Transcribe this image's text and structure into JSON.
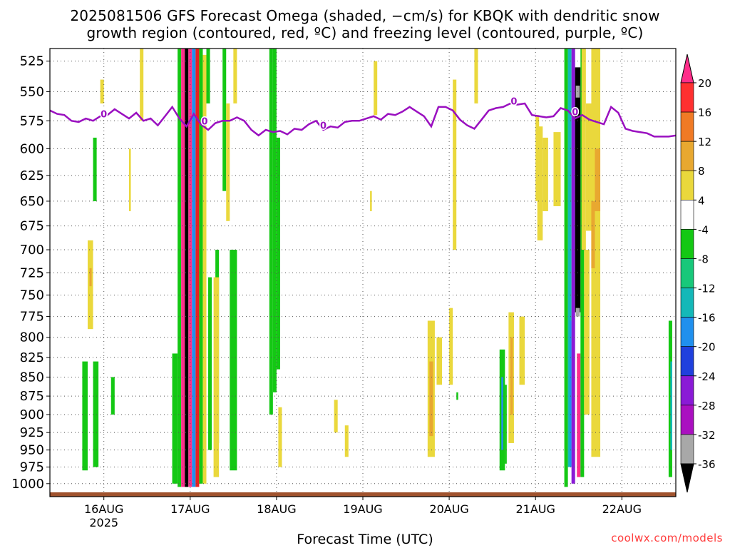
{
  "title_line1": "2025081506 GFS Forecast Omega (shaded, −cm/s) for KBQK with dendritic snow",
  "title_line2": "growth region (contoured, red, ºC) and freezing level (contoured, purple, ºC)",
  "xlabel": "Forecast Time (UTC)",
  "credit": "coolwx.com/models",
  "chart_data": {
    "type": "heatmap",
    "title": "2025081506 GFS Forecast Omega (shaded, −cm/s) for KBQK with dendritic snow growth region (contoured, red, ºC) and freezing level (contoured, purple, ºC)",
    "xlabel": "Forecast Time (UTC)",
    "ylabel": "",
    "x_ticks": [
      "16AUG",
      "17AUG",
      "18AUG",
      "19AUG",
      "20AUG",
      "21AUG",
      "22AUG"
    ],
    "x_tick_sub": {
      "16AUG": "2025"
    },
    "x_range_hours": [
      -15,
      159
    ],
    "y_ticks": [
      525,
      550,
      575,
      600,
      625,
      650,
      675,
      700,
      725,
      750,
      775,
      800,
      825,
      850,
      875,
      900,
      925,
      950,
      975,
      1000
    ],
    "y_range": [
      515,
      1020
    ],
    "y_scale": "log",
    "grid": true,
    "colorbar": {
      "labels": [
        20,
        16,
        12,
        8,
        4,
        -4,
        -8,
        -12,
        -16,
        -20,
        -24,
        -28,
        -32,
        -36
      ],
      "colors": [
        "#ff2d8a",
        "#ff3030",
        "#f07a25",
        "#e8a830",
        "#ead83c",
        "#ffffff",
        "#14c814",
        "#18c87a",
        "#14b8b8",
        "#2090ee",
        "#2040dd",
        "#8a1ad6",
        "#aa10c0",
        "#a8a8a8",
        "#000000"
      ]
    },
    "series": [
      {
        "name": "0",
        "color": "#9a10c0",
        "values": [
          [
            -15,
            566
          ],
          [
            -13,
            569
          ],
          [
            -11,
            570
          ],
          [
            -9,
            575
          ],
          [
            -7,
            576
          ],
          [
            -5,
            573
          ],
          [
            -3,
            575
          ],
          [
            -1,
            571
          ],
          [
            1,
            570
          ],
          [
            3,
            565
          ],
          [
            5,
            569
          ],
          [
            7,
            573
          ],
          [
            9,
            568
          ],
          [
            11,
            575
          ],
          [
            13,
            573
          ],
          [
            15,
            579
          ],
          [
            17,
            571
          ],
          [
            19,
            563
          ],
          [
            21,
            573
          ],
          [
            23,
            580
          ],
          [
            25,
            569
          ],
          [
            27,
            578
          ],
          [
            29,
            583
          ],
          [
            31,
            577
          ],
          [
            33,
            575
          ],
          [
            35,
            575
          ],
          [
            37,
            572
          ],
          [
            39,
            575
          ],
          [
            41,
            583
          ],
          [
            43,
            588
          ],
          [
            45,
            583
          ],
          [
            47,
            585
          ],
          [
            49,
            584
          ],
          [
            51,
            587
          ],
          [
            53,
            582
          ],
          [
            55,
            583
          ],
          [
            57,
            578
          ],
          [
            59,
            575
          ],
          [
            61,
            583
          ],
          [
            63,
            580
          ],
          [
            65,
            581
          ],
          [
            67,
            576
          ],
          [
            69,
            575
          ],
          [
            71,
            575
          ],
          [
            73,
            573
          ],
          [
            75,
            571
          ],
          [
            77,
            574
          ],
          [
            79,
            569
          ],
          [
            81,
            570
          ],
          [
            83,
            567
          ],
          [
            85,
            563
          ],
          [
            87,
            567
          ],
          [
            89,
            571
          ],
          [
            91,
            580
          ],
          [
            93,
            563
          ],
          [
            95,
            563
          ],
          [
            97,
            566
          ],
          [
            99,
            574
          ],
          [
            101,
            579
          ],
          [
            103,
            582
          ],
          [
            105,
            574
          ],
          [
            107,
            566
          ],
          [
            109,
            564
          ],
          [
            111,
            563
          ],
          [
            113,
            560
          ],
          [
            115,
            561
          ],
          [
            117,
            560
          ],
          [
            119,
            570
          ],
          [
            121,
            571
          ],
          [
            123,
            572
          ],
          [
            125,
            571
          ],
          [
            127,
            564
          ],
          [
            129,
            566
          ],
          [
            131,
            573
          ],
          [
            133,
            570
          ],
          [
            135,
            574
          ],
          [
            137,
            576
          ],
          [
            139,
            578
          ],
          [
            141,
            563
          ],
          [
            143,
            568
          ],
          [
            145,
            582
          ],
          [
            147,
            584
          ],
          [
            149,
            585
          ],
          [
            151,
            586
          ],
          [
            153,
            589
          ],
          [
            155,
            589
          ],
          [
            157,
            589
          ],
          [
            159,
            588
          ]
        ]
      }
    ],
    "contour_labels": [
      "0",
      "0",
      "0",
      "0"
    ],
    "omega_regions": [
      {
        "x": [
          -6,
          -4.5
        ],
        "p": [
          830,
          980
        ],
        "c": "#14c814"
      },
      {
        "x": [
          -3,
          -1.5
        ],
        "p": [
          830,
          975
        ],
        "c": "#14c814"
      },
      {
        "x": [
          2,
          3
        ],
        "p": [
          850,
          900
        ],
        "c": "#14c814"
      },
      {
        "x": [
          -3,
          -2
        ],
        "p": [
          590,
          650
        ],
        "c": "#14c814"
      },
      {
        "x": [
          -1,
          0
        ],
        "p": [
          540,
          560
        ],
        "c": "#ead83c"
      },
      {
        "x": [
          -4.5,
          -3
        ],
        "p": [
          690,
          790
        ],
        "c": "#ead83c"
      },
      {
        "x": [
          -4,
          -3.4
        ],
        "p": [
          720,
          740
        ],
        "c": "#e8a830"
      },
      {
        "x": [
          7,
          7.5
        ],
        "p": [
          600,
          660
        ],
        "c": "#ead83c"
      },
      {
        "x": [
          10,
          11
        ],
        "p": [
          515,
          575
        ],
        "c": "#ead83c"
      },
      {
        "x": [
          19,
          20.5
        ],
        "p": [
          820,
          1000
        ],
        "c": "#14c814"
      },
      {
        "x": [
          20.5,
          21.5
        ],
        "p": [
          515,
          1005
        ],
        "c": "#14c814"
      },
      {
        "x": [
          21.5,
          22.5
        ],
        "p": [
          515,
          1005
        ],
        "c": "#ff2d8a"
      },
      {
        "x": [
          22.5,
          23.5
        ],
        "p": [
          515,
          1005
        ],
        "c": "#000000"
      },
      {
        "x": [
          23.5,
          24.5
        ],
        "p": [
          515,
          1005
        ],
        "c": "#ff2d8a"
      },
      {
        "x": [
          24.5,
          25.5
        ],
        "p": [
          515,
          1005
        ],
        "c": "#2090ee"
      },
      {
        "x": [
          25.5,
          26.5
        ],
        "p": [
          515,
          1005
        ],
        "c": "#ea2020"
      },
      {
        "x": [
          26.5,
          27.5
        ],
        "p": [
          515,
          1000
        ],
        "c": "#14c814"
      },
      {
        "x": [
          27.5,
          28.5
        ],
        "p": [
          520,
          1000
        ],
        "c": "#ead83c"
      },
      {
        "x": [
          28.5,
          29.5
        ],
        "p": [
          515,
          560
        ],
        "c": "#14c814"
      },
      {
        "x": [
          29,
          30
        ],
        "p": [
          730,
          950
        ],
        "c": "#14c814"
      },
      {
        "x": [
          31,
          32
        ],
        "p": [
          700,
          940
        ],
        "c": "#14c814"
      },
      {
        "x": [
          30.5,
          32
        ],
        "p": [
          730,
          990
        ],
        "c": "#ead83c"
      },
      {
        "x": [
          33,
          34
        ],
        "p": [
          515,
          640
        ],
        "c": "#14c814"
      },
      {
        "x": [
          34,
          35
        ],
        "p": [
          560,
          670
        ],
        "c": "#ead83c"
      },
      {
        "x": [
          36,
          37
        ],
        "p": [
          515,
          560
        ],
        "c": "#ead83c"
      },
      {
        "x": [
          35,
          37
        ],
        "p": [
          700,
          980
        ],
        "c": "#14c814"
      },
      {
        "x": [
          46,
          47
        ],
        "p": [
          515,
          900
        ],
        "c": "#14c814"
      },
      {
        "x": [
          47,
          48
        ],
        "p": [
          515,
          870
        ],
        "c": "#14c814"
      },
      {
        "x": [
          48,
          49
        ],
        "p": [
          590,
          840
        ],
        "c": "#14c814"
      },
      {
        "x": [
          48.5,
          49.5
        ],
        "p": [
          890,
          975
        ],
        "c": "#ead83c"
      },
      {
        "x": [
          64,
          65
        ],
        "p": [
          880,
          925
        ],
        "c": "#ead83c"
      },
      {
        "x": [
          67,
          68
        ],
        "p": [
          915,
          960
        ],
        "c": "#ead83c"
      },
      {
        "x": [
          75,
          76
        ],
        "p": [
          525,
          570
        ],
        "c": "#ead83c"
      },
      {
        "x": [
          74,
          74.5
        ],
        "p": [
          640,
          660
        ],
        "c": "#ead83c"
      },
      {
        "x": [
          90,
          92
        ],
        "p": [
          780,
          960
        ],
        "c": "#ead83c"
      },
      {
        "x": [
          90.5,
          91.5
        ],
        "p": [
          830,
          930
        ],
        "c": "#e8a830"
      },
      {
        "x": [
          92.5,
          94
        ],
        "p": [
          800,
          860
        ],
        "c": "#ead83c"
      },
      {
        "x": [
          96,
          97
        ],
        "p": [
          765,
          860
        ],
        "c": "#ead83c"
      },
      {
        "x": [
          97,
          98
        ],
        "p": [
          540,
          700
        ],
        "c": "#ead83c"
      },
      {
        "x": [
          98,
          98.5
        ],
        "p": [
          870,
          880
        ],
        "c": "#14c814"
      },
      {
        "x": [
          103,
          104
        ],
        "p": [
          515,
          560
        ],
        "c": "#ead83c"
      },
      {
        "x": [
          110,
          111.5
        ],
        "p": [
          815,
          980
        ],
        "c": "#14c814"
      },
      {
        "x": [
          110.5,
          111
        ],
        "p": [
          850,
          950
        ],
        "c": "#2090ee"
      },
      {
        "x": [
          111.5,
          112
        ],
        "p": [
          860,
          970
        ],
        "c": "#14c814"
      },
      {
        "x": [
          112.5,
          114
        ],
        "p": [
          770,
          940
        ],
        "c": "#ead83c"
      },
      {
        "x": [
          113,
          113.7
        ],
        "p": [
          800,
          900
        ],
        "c": "#e8a830"
      },
      {
        "x": [
          115.5,
          117
        ],
        "p": [
          775,
          860
        ],
        "c": "#ead83c"
      },
      {
        "x": [
          120,
          121
        ],
        "p": [
          570,
          650
        ],
        "c": "#ead83c"
      },
      {
        "x": [
          120.5,
          122
        ],
        "p": [
          580,
          690
        ],
        "c": "#ead83c"
      },
      {
        "x": [
          122,
          123.5
        ],
        "p": [
          590,
          660
        ],
        "c": "#ead83c"
      },
      {
        "x": [
          125,
          127
        ],
        "p": [
          585,
          655
        ],
        "c": "#ead83c"
      },
      {
        "x": [
          128,
          129
        ],
        "p": [
          515,
          1005
        ],
        "c": "#14c814"
      },
      {
        "x": [
          129,
          130
        ],
        "p": [
          515,
          975
        ],
        "c": "#14b8b8"
      },
      {
        "x": [
          129.5,
          130
        ],
        "p": [
          780,
          975
        ],
        "c": "#2090ee"
      },
      {
        "x": [
          130,
          131
        ],
        "p": [
          515,
          1000
        ],
        "c": "#8a1ad6"
      },
      {
        "x": [
          131,
          132.5
        ],
        "p": [
          530,
          770
        ],
        "c": "#000000"
      },
      {
        "x": [
          131.5,
          132.5
        ],
        "p": [
          820,
          990
        ],
        "c": "#ff2d8a"
      },
      {
        "x": [
          132.5,
          133.5
        ],
        "p": [
          515,
          990
        ],
        "c": "#14c814"
      },
      {
        "x": [
          131.2,
          132.3
        ],
        "p": [
          545,
          555
        ],
        "c": "#a8a8a8"
      },
      {
        "x": [
          131.2,
          132.3
        ],
        "p": [
          765,
          775
        ],
        "c": "#a8a8a8"
      },
      {
        "x": [
          132.8,
          134
        ],
        "p": [
          515,
          700
        ],
        "c": "#ead83c"
      },
      {
        "x": [
          134,
          136
        ],
        "p": [
          560,
          680
        ],
        "c": "#ead83c"
      },
      {
        "x": [
          133.5,
          135
        ],
        "p": [
          700,
          900
        ],
        "c": "#ead83c"
      },
      {
        "x": [
          135.5,
          138
        ],
        "p": [
          515,
          960
        ],
        "c": "#ead83c"
      },
      {
        "x": [
          135.5,
          136.5
        ],
        "p": [
          650,
          720
        ],
        "c": "#e8a830"
      },
      {
        "x": [
          136.5,
          138
        ],
        "p": [
          600,
          660
        ],
        "c": "#e8a830"
      },
      {
        "x": [
          157,
          158
        ],
        "p": [
          780,
          990
        ],
        "c": "#14c814"
      },
      {
        "x": [
          157.5,
          158
        ],
        "p": [
          830,
          950
        ],
        "c": "#14b8b8"
      }
    ]
  },
  "ground": {
    "color": "#a0522d"
  }
}
